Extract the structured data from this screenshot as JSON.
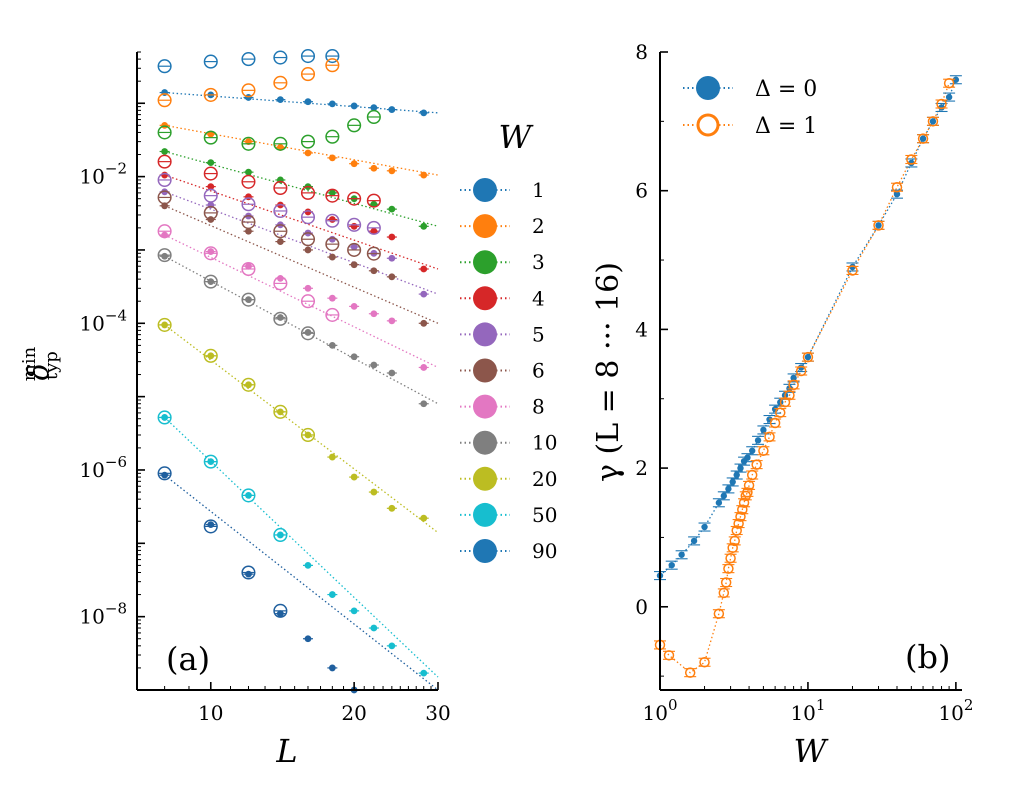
{
  "chart_data": [
    {
      "panel": "a",
      "type": "scatter",
      "panel_label": "(a)",
      "xscale": "log",
      "yscale": "log",
      "xlabel": "L",
      "ylabel": "δ_typ^min",
      "xlim": [
        7,
        30
      ],
      "ylim": [
        1e-09,
        0.5
      ],
      "xticks": [
        10,
        20,
        30
      ],
      "xtick_labels": [
        "10",
        "20",
        "30"
      ],
      "ytick_labels": [
        {
          "value": 0.01,
          "base": "10",
          "exp": "−2"
        },
        {
          "value": 0.0001,
          "base": "10",
          "exp": "−4"
        },
        {
          "value": 1e-06,
          "base": "10",
          "exp": "−6"
        },
        {
          "value": 1e-08,
          "base": "10",
          "exp": "−8"
        }
      ],
      "legend_title": "W",
      "legend_location": "right",
      "closed_L": [
        8,
        10,
        12,
        14,
        16,
        18,
        20,
        22,
        24,
        28
      ],
      "open_L": [
        8,
        10,
        12,
        14,
        16,
        18,
        20,
        22
      ],
      "series": [
        {
          "name": "1",
          "color": "#1f77b4",
          "closed": [
            0.14,
            0.13,
            0.12,
            0.112,
            0.105,
            0.098,
            0.092,
            0.087,
            0.082,
            0.074
          ],
          "open": [
            0.32,
            0.37,
            0.4,
            0.42,
            0.44,
            0.44
          ],
          "fit": [
            0.14,
            0.074
          ]
        },
        {
          "name": "2",
          "color": "#ff7f0e",
          "closed": [
            0.05,
            0.038,
            0.03,
            0.025,
            0.021,
            0.018,
            0.015,
            0.013,
            0.012,
            0.0105
          ],
          "open": [
            0.11,
            0.13,
            0.15,
            0.19,
            0.25,
            0.33
          ],
          "fit": [
            0.05,
            0.0105
          ]
        },
        {
          "name": "3",
          "color": "#2ca02c",
          "closed": [
            0.022,
            0.0155,
            0.0115,
            0.009,
            0.0073,
            0.006,
            0.005,
            0.0042,
            0.0036,
            0.0021
          ],
          "open": [
            0.04,
            0.034,
            0.028,
            0.028,
            0.03,
            0.035,
            0.05,
            0.065
          ],
          "fit": [
            0.022,
            0.0021
          ]
        },
        {
          "name": "4",
          "color": "#d62728",
          "closed": [
            0.0105,
            0.0073,
            0.0053,
            0.0041,
            0.0033,
            0.0026,
            0.0021,
            0.0018,
            0.0015,
            0.00055
          ],
          "open": [
            0.016,
            0.011,
            0.0085,
            0.007,
            0.006,
            0.0055,
            0.005,
            0.0047
          ],
          "fit": [
            0.0105,
            0.00055
          ]
        },
        {
          "name": "5",
          "color": "#9467bd",
          "closed": [
            0.0062,
            0.0041,
            0.0029,
            0.0022,
            0.0017,
            0.0014,
            0.0011,
            0.0009,
            0.00077,
            0.00025
          ],
          "open": [
            0.009,
            0.0055,
            0.0042,
            0.0034,
            0.0028,
            0.0025,
            0.0022,
            0.002
          ],
          "fit": [
            0.0062,
            0.00025
          ]
        },
        {
          "name": "6",
          "color": "#8c564b",
          "closed": [
            0.004,
            0.0026,
            0.0018,
            0.0013,
            0.001,
            0.0008,
            0.00063,
            0.00052,
            0.00043,
            0.0001
          ],
          "open": [
            0.0052,
            0.0032,
            0.0024,
            0.0018,
            0.0014,
            0.0012,
            0.001,
            0.00089
          ],
          "fit": [
            0.004,
            0.0001
          ]
        },
        {
          "name": "8",
          "color": "#e377c2",
          "closed": [
            0.0016,
            0.00095,
            0.0006,
            0.00041,
            0.0003,
            0.00022,
            0.00017,
            0.000135,
            0.000108,
            2.5e-05
          ],
          "open": [
            0.0018,
            0.0009,
            0.00055,
            0.00035,
            0.0002,
            0.00013
          ],
          "fit": [
            0.0016,
            2.5e-05
          ]
        },
        {
          "name": "10",
          "color": "#7f7f7f",
          "closed": [
            0.00082,
            0.00037,
            0.00021,
            0.00012,
            7.5e-05,
            5e-05,
            3.5e-05,
            2.7e-05,
            2.1e-05,
            8e-06
          ],
          "open": [
            0.00085,
            0.00037,
            0.00021,
            0.000115,
            7.3e-05
          ],
          "fit": [
            0.00082,
            8e-06
          ]
        },
        {
          "name": "20",
          "color": "#bcbd22",
          "closed": [
            9.5e-05,
            3.6e-05,
            1.45e-05,
            6.2e-06,
            3e-06,
            1.5e-06,
            8e-07,
            5e-07,
            3e-07,
            2.2e-07
          ],
          "open": [
            9.5e-05,
            3.6e-05,
            1.45e-05,
            6.2e-06,
            3e-06
          ],
          "fit": [
            9.5e-05,
            1.4e-07
          ]
        },
        {
          "name": "50",
          "color": "#17becf",
          "closed": [
            5.2e-06,
            1.3e-06,
            4.5e-07,
            1.3e-07,
            5e-08,
            2e-08,
            1.2e-08,
            7e-09,
            4e-09,
            1.7e-09
          ],
          "open": [
            5.2e-06,
            1.3e-06,
            4.5e-07,
            1.3e-07
          ],
          "fit": [
            5.2e-06,
            1.5e-09
          ]
        },
        {
          "name": "90",
          "color": "#1f77b4",
          "closed": [
            8.5e-07,
            1.8e-07,
            3.8e-08,
            1.1e-08,
            5e-09,
            2e-09,
            1e-09
          ],
          "open": [
            9e-07,
            1.7e-07,
            4e-08,
            1.2e-08
          ],
          "fit": [
            8.5e-07,
            1e-09
          ],
          "dark": true
        }
      ]
    },
    {
      "panel": "b",
      "type": "line",
      "panel_label": "(b)",
      "xscale": "log",
      "yscale": "linear",
      "xlabel": "W",
      "ylabel": "γ (L = 8 ··· 16)",
      "xlim": [
        1,
        110
      ],
      "ylim": [
        -1.2,
        8
      ],
      "xtick_labels": [
        {
          "value": 1,
          "base": "10",
          "exp": "0"
        },
        {
          "value": 10,
          "base": "10",
          "exp": "1"
        },
        {
          "value": 100,
          "base": "10",
          "exp": "2"
        }
      ],
      "yticks": [
        0,
        2,
        4,
        6,
        8
      ],
      "ytick_labels": [
        "0",
        "2",
        "4",
        "6",
        "8"
      ],
      "legend_location": "top-left",
      "series": [
        {
          "name": "Δ = 0",
          "color": "#1f77b4",
          "marker": "filled",
          "x": [
            1.0,
            1.2,
            1.4,
            1.7,
            2.0,
            2.5,
            2.7,
            2.9,
            3.1,
            3.3,
            3.5,
            3.7,
            3.9,
            4.2,
            4.6,
            5.0,
            5.5,
            6.0,
            6.5,
            7.0,
            7.5,
            8.0,
            9.0,
            10.0,
            20.0,
            30.0,
            40.0,
            50.0,
            60.0,
            70.0,
            80.0,
            90.0,
            100.0
          ],
          "y": [
            0.45,
            0.6,
            0.75,
            0.95,
            1.15,
            1.5,
            1.6,
            1.7,
            1.8,
            1.9,
            2.0,
            2.1,
            2.15,
            2.25,
            2.4,
            2.55,
            2.7,
            2.85,
            2.95,
            3.05,
            3.15,
            3.3,
            3.45,
            3.6,
            4.9,
            5.5,
            5.95,
            6.4,
            6.75,
            7.0,
            7.2,
            7.35,
            7.6
          ]
        },
        {
          "name": "Δ = 1",
          "color": "#ff7f0e",
          "marker": "open",
          "x": [
            1.0,
            1.15,
            1.6,
            2.0,
            2.5,
            2.7,
            2.8,
            2.9,
            3.0,
            3.1,
            3.2,
            3.3,
            3.4,
            3.5,
            3.6,
            3.7,
            3.8,
            3.9,
            4.0,
            4.2,
            4.5,
            5.0,
            5.5,
            6.0,
            6.5,
            7.0,
            7.5,
            8.0,
            9.0,
            10.0,
            20.0,
            30.0,
            40.0,
            50.0,
            60.0,
            70.0,
            80.0,
            90.0
          ],
          "y": [
            -0.55,
            -0.7,
            -0.95,
            -0.8,
            -0.1,
            0.2,
            0.35,
            0.55,
            0.7,
            0.85,
            0.95,
            1.1,
            1.2,
            1.3,
            1.4,
            1.5,
            1.6,
            1.65,
            1.75,
            1.9,
            2.05,
            2.25,
            2.45,
            2.65,
            2.8,
            2.95,
            3.05,
            3.2,
            3.4,
            3.6,
            4.85,
            5.5,
            6.05,
            6.45,
            6.75,
            7.0,
            7.25,
            7.55
          ]
        }
      ]
    }
  ]
}
